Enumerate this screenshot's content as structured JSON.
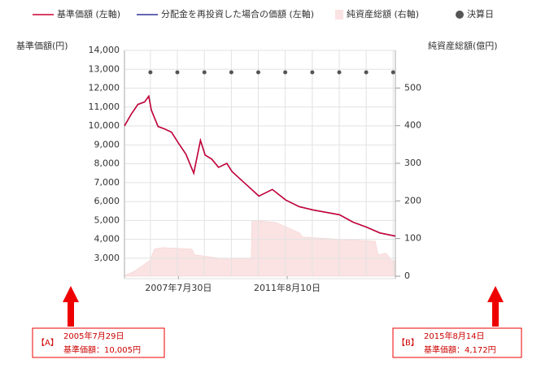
{
  "chart_data": {
    "type": "line",
    "y_label": "基準価額(円)",
    "y2_label": "純資産総額(億円)",
    "xlim": [
      "2005-07-29",
      "2015-08-14"
    ],
    "xticks": [
      {
        "value": "2007-07-30",
        "label": "2007年7月30日"
      },
      {
        "value": "2011-08-10",
        "label": "2011年8月10日"
      }
    ],
    "ylim": [
      2050,
      14000
    ],
    "yticks": [
      {
        "value": 3000,
        "label": "3,000"
      },
      {
        "value": 4000,
        "label": "4,000"
      },
      {
        "value": 5000,
        "label": "5,000"
      },
      {
        "value": 6000,
        "label": "6,000"
      },
      {
        "value": 7000,
        "label": "7,000"
      },
      {
        "value": 8000,
        "label": "8,000"
      },
      {
        "value": 9000,
        "label": "9,000"
      },
      {
        "value": 10000,
        "label": "10,000"
      },
      {
        "value": 11000,
        "label": "11,000"
      },
      {
        "value": 12000,
        "label": "12,000"
      },
      {
        "value": 13000,
        "label": "13,000"
      },
      {
        "value": 14000,
        "label": "14,000"
      }
    ],
    "y2lim": [
      0,
      600
    ],
    "y2ticks": [
      0,
      100,
      200,
      300,
      400,
      500
    ],
    "grid": true,
    "legend": "top",
    "x": [
      "2005-07-29",
      "2005-10-28",
      "2006-01-27",
      "2006-04-28",
      "2006-06-23",
      "2006-07-28",
      "2006-10-27",
      "2007-01-26",
      "2007-04-27",
      "2007-07-27",
      "2007-11-09",
      "2008-02-22",
      "2008-05-23",
      "2008-07-25",
      "2008-10-24",
      "2009-01-23",
      "2009-05-15",
      "2009-07-24",
      "2010-01-22",
      "2010-07-23",
      "2011-01-21",
      "2011-07-22",
      "2012-01-20",
      "2012-07-20",
      "2013-01-18",
      "2013-07-19",
      "2014-01-17",
      "2014-07-18",
      "2015-01-16",
      "2015-08-14"
    ],
    "series": [
      {
        "name": "基準価額 (左軸)",
        "color": "#cc0033",
        "values": [
          10005,
          10620,
          11140,
          11270,
          11575,
          10840,
          9970,
          9840,
          9670,
          9110,
          8500,
          7500,
          9240,
          8460,
          8240,
          7810,
          8020,
          7590,
          6940,
          6290,
          6640,
          6080,
          5730,
          5560,
          5430,
          5300,
          4910,
          4650,
          4340,
          4172
        ]
      },
      {
        "name": "分配金を再投資した場合の価額 (左軸)",
        "color": "#333399",
        "values": [
          10005,
          10620,
          11140,
          11270,
          11575,
          10840,
          9970,
          9840,
          9670,
          9110,
          8500,
          7500,
          9240,
          8460,
          8240,
          7810,
          8020,
          7590,
          6940,
          6290,
          6640,
          6080,
          5730,
          5560,
          5430,
          5300,
          4910,
          4650,
          4340,
          4172
        ]
      },
      {
        "name": "純資産総額 (右軸)",
        "color": "#fbe3e3",
        "axis": "y2",
        "x": [
          "2005-07-29",
          "2005-12-07",
          "2006-03-28",
          "2006-07-14",
          "2006-09-05",
          "2006-12-22",
          "2008-01-29",
          "2008-03-07",
          "2009-01-30",
          "2010-04-10",
          "2010-04-20",
          "2011-03-06",
          "2012-01-27",
          "2012-03-07",
          "2013-07-26",
          "2014-11-15",
          "2014-12-22",
          "2015-04-10",
          "2015-06-22",
          "2015-08-14"
        ],
        "values": [
          2,
          13,
          28,
          43,
          72,
          76,
          72,
          57,
          48,
          48,
          148,
          143,
          115,
          104,
          98,
          93,
          57,
          61,
          43,
          39
        ]
      },
      {
        "name": "決算日",
        "color": "#555555",
        "x": [
          "2006-07-15",
          "2007-07-15",
          "2008-07-15",
          "2009-07-15",
          "2010-07-15",
          "2011-07-15",
          "2012-07-15",
          "2013-07-15",
          "2014-07-15",
          "2015-07-15"
        ]
      }
    ],
    "annotations": [
      {
        "tag": "【A】",
        "date": "2005年7月29日",
        "text": "基準価額：10,005円"
      },
      {
        "tag": "【B】",
        "date": "2015年8月14日",
        "text": "基準価額：4,172円"
      }
    ]
  }
}
